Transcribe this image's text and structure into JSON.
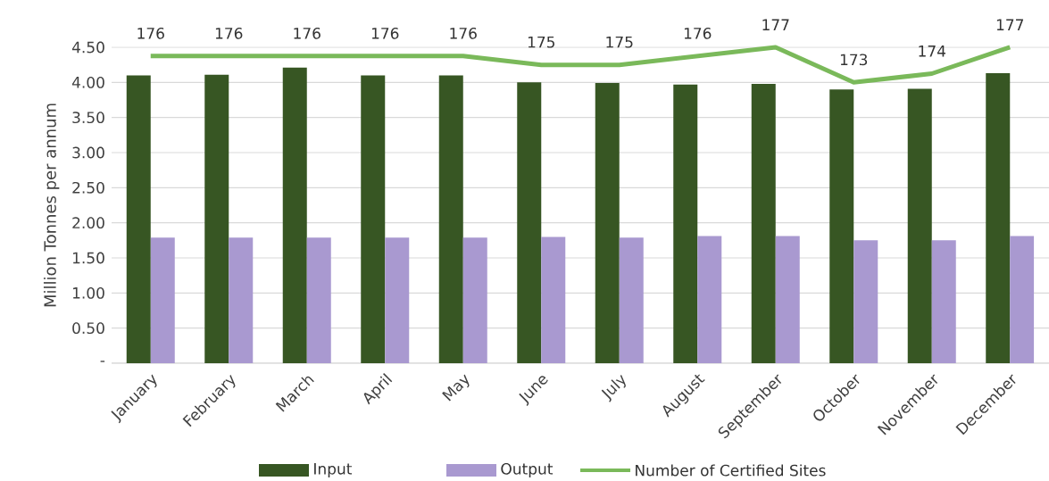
{
  "chart_data": {
    "type": "bar",
    "ylabel": "Million Tonnes per annum",
    "categories": [
      "January",
      "February",
      "March",
      "April",
      "May",
      "June",
      "July",
      "August",
      "September",
      "October",
      "November",
      "December"
    ],
    "series": [
      {
        "name": "Input",
        "color": "#375623",
        "values": [
          4.1,
          4.11,
          4.21,
          4.1,
          4.1,
          4.0,
          3.99,
          3.97,
          3.98,
          3.9,
          3.91,
          4.13
        ]
      },
      {
        "name": "Output",
        "color": "#a999d0",
        "values": [
          1.79,
          1.79,
          1.79,
          1.79,
          1.79,
          1.8,
          1.79,
          1.81,
          1.81,
          1.75,
          1.75,
          1.81
        ]
      },
      {
        "name": "Number of Certified Sites",
        "type": "line",
        "axis": "y2",
        "color": "#7ab95a",
        "data_labels": true,
        "values": [
          176,
          176,
          176,
          176,
          176,
          175,
          175,
          176,
          177,
          173,
          174,
          177
        ]
      }
    ],
    "ylim": [
      0,
      4.5
    ],
    "yticks": [
      {
        "value": 0,
        "label": "-"
      },
      {
        "value": 0.5,
        "label": "0.50"
      },
      {
        "value": 1,
        "label": "1.00"
      },
      {
        "value": 1.5,
        "label": "1.50"
      },
      {
        "value": 2,
        "label": "2.00"
      },
      {
        "value": 2.5,
        "label": "2.50"
      },
      {
        "value": 3,
        "label": "3.00"
      },
      {
        "value": 3.5,
        "label": "3.50"
      },
      {
        "value": 4,
        "label": "4.00"
      },
      {
        "value": 4.5,
        "label": "4.50"
      }
    ],
    "y2lim": [
      141,
      177
    ],
    "grid": "y",
    "legend": "bottom"
  }
}
